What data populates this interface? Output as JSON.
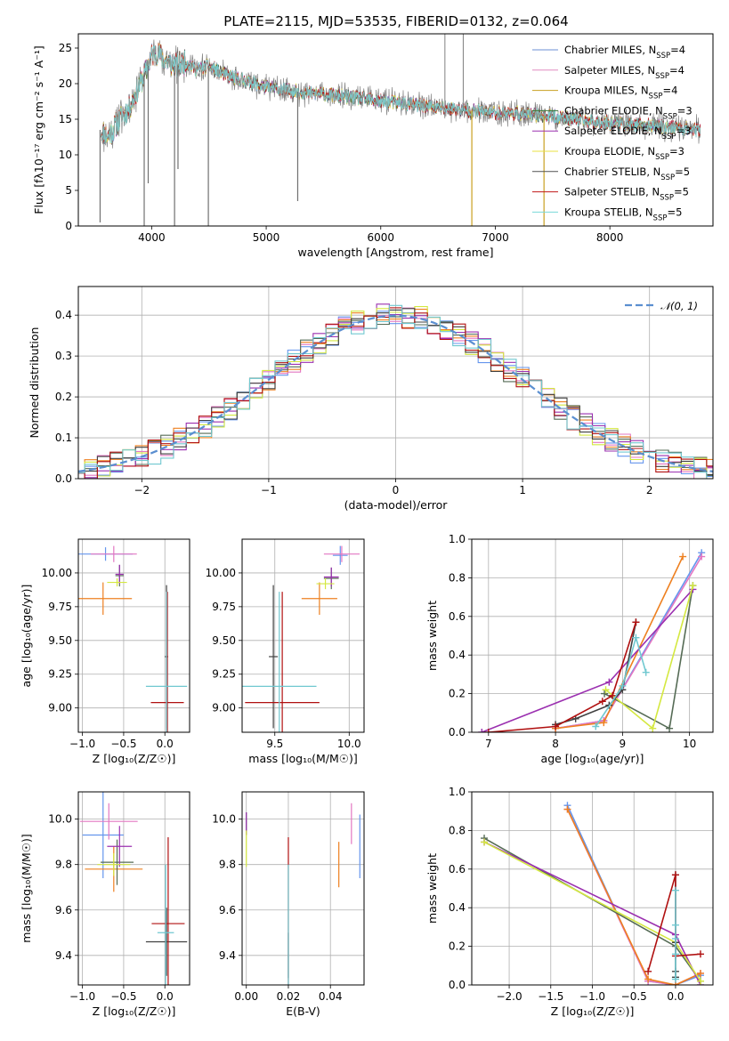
{
  "figure": {
    "title": "PLATE=2115, MJD=53535, FIBERID=0132, z=0.064"
  },
  "colors": {
    "series": [
      "#6b8fd6",
      "#e08cc0",
      "#c8a020",
      "#3a7a3a",
      "#9b30b0",
      "#e8e040",
      "#505050",
      "#c01818",
      "#78d8d8"
    ],
    "overlay": [
      "#6495ed",
      "#e377c2",
      "#ee8020",
      "#556b55",
      "#9b30b0",
      "#d4e840",
      "#404040",
      "#b01010",
      "#70c8d0"
    ],
    "gauss": "#5b8fd0"
  },
  "chart_data": [
    {
      "id": "spectrum",
      "type": "line",
      "title": "PLATE=2115, MJD=53535, FIBERID=0132, z=0.064",
      "xlabel": "wavelength [Angstrom, rest frame]",
      "ylabel": "Flux [fλ10⁻¹⁷ erg cm⁻² s⁻¹ A⁻¹]",
      "xlim": [
        3360,
        8900
      ],
      "ylim": [
        0,
        27
      ],
      "xticks": [
        4000,
        5000,
        6000,
        7000,
        8000
      ],
      "yticks": [
        0,
        5,
        10,
        15,
        20,
        25
      ],
      "grid": false,
      "legend_position": "top-right",
      "continuum": {
        "x": [
          3560,
          3620,
          3700,
          3800,
          3900,
          3960,
          4000,
          4050,
          4100,
          4200,
          4300,
          4400,
          4500,
          4600,
          4800,
          5000,
          5200,
          5500,
          5800,
          6000,
          6200,
          6400,
          6600,
          6800,
          7000,
          7200,
          7400,
          7600,
          7800,
          8000,
          8200,
          8400,
          8600,
          8800
        ],
        "y": [
          13.5,
          12.5,
          14.5,
          16.5,
          20,
          22,
          24,
          24.5,
          23.5,
          22.5,
          23,
          22,
          22.5,
          21.5,
          20.5,
          19.5,
          19,
          18.5,
          18,
          17.5,
          17.2,
          16.8,
          16.5,
          16.2,
          16,
          15.8,
          15.5,
          15.2,
          14.8,
          14.5,
          14.2,
          14,
          13.8,
          13.5
        ]
      },
      "series": [
        {
          "name": "Chabrier MILES, N_SSP=4"
        },
        {
          "name": "Salpeter MILES, N_SSP=4"
        },
        {
          "name": "Kroupa MILES, N_SSP=4"
        },
        {
          "name": "Chabrier ELODIE, N_SSP=3"
        },
        {
          "name": "Salpeter ELODIE, N_SSP=3"
        },
        {
          "name": "Kroupa ELODIE, N_SSP=3"
        },
        {
          "name": "Chabrier STELIB, N_SSP=5"
        },
        {
          "name": "Salpeter STELIB, N_SSP=5"
        },
        {
          "name": "Kroupa STELIB, N_SSP=5"
        }
      ],
      "legend_entries": [
        {
          "pre": "Chabrier MILES, N",
          "sub": "SSP",
          "post": "=4"
        },
        {
          "pre": "Salpeter MILES, N",
          "sub": "SSP",
          "post": "=4"
        },
        {
          "pre": "Kroupa MILES, N",
          "sub": "SSP",
          "post": "=4"
        },
        {
          "pre": "Chabrier ELODIE, N",
          "sub": "SSP",
          "post": "=3"
        },
        {
          "pre": "Salpeter ELODIE, N",
          "sub": "SSP",
          "post": "=3"
        },
        {
          "pre": "Kroupa ELODIE, N",
          "sub": "SSP",
          "post": "=3"
        },
        {
          "pre": "Chabrier STELIB, N",
          "sub": "SSP",
          "post": "=5"
        },
        {
          "pre": "Salpeter STELIB, N",
          "sub": "SSP",
          "post": "=5"
        },
        {
          "pre": "Kroupa STELIB, N",
          "sub": "SSP",
          "post": "=5"
        }
      ],
      "spikes_down": [
        {
          "x": 3550,
          "y": 0.5
        },
        {
          "x": 3935,
          "y": 0
        },
        {
          "x": 3970,
          "y": 6
        },
        {
          "x": 4200,
          "y": 0
        },
        {
          "x": 4230,
          "y": 8
        },
        {
          "x": 4495,
          "y": 0
        },
        {
          "x": 5275,
          "y": 3.5
        },
        {
          "x": 6795,
          "y": 0
        },
        {
          "x": 7425,
          "y": 0
        }
      ],
      "spikes_up": [
        {
          "x": 6560,
          "y": 27
        },
        {
          "x": 6720,
          "y": 27
        }
      ]
    },
    {
      "id": "residuals",
      "type": "line",
      "xlabel": "(data-model)/error",
      "ylabel": "Normed distribution",
      "xlim": [
        -2.5,
        2.5
      ],
      "ylim": [
        0,
        0.47
      ],
      "xticks": [
        -2,
        -1,
        0,
        1,
        2
      ],
      "yticks": [
        0.0,
        0.1,
        0.2,
        0.3,
        0.4
      ],
      "grid": true,
      "legend_position": "top-right",
      "legend_label": "𝒩(0, 1)",
      "bin_width": 0.1
    },
    {
      "id": "age-vs-Z",
      "type": "scatter",
      "xlabel": "Z [log₁₀(Z/Z☉)]",
      "ylabel": "age  [log₁₀(age/yr)]",
      "xlim": [
        -1.05,
        0.3
      ],
      "ylim": [
        8.82,
        10.25
      ],
      "xticks": [
        -1.0,
        -0.5,
        0.0
      ],
      "yticks": [
        9.0,
        9.25,
        9.5,
        9.75,
        10.0
      ],
      "grid": true,
      "points": [
        {
          "series": 0,
          "x": -0.72,
          "y": 10.14,
          "xerr": 0.33,
          "yerr": 0.05
        },
        {
          "series": 1,
          "x": -0.62,
          "y": 10.14,
          "xerr": 0.28,
          "yerr": 0.06
        },
        {
          "series": 2,
          "x": -0.75,
          "y": 9.81,
          "xerr": 0.35,
          "yerr": 0.12
        },
        {
          "series": 3,
          "x": -0.55,
          "y": 9.98,
          "xerr": 0.05,
          "yerr": 0.08
        },
        {
          "series": 4,
          "x": -0.55,
          "y": 9.99,
          "xerr": 0.05,
          "yerr": 0.07
        },
        {
          "series": 5,
          "x": -0.58,
          "y": 9.93,
          "xerr": 0.12,
          "yerr": 0.03
        },
        {
          "series": 6,
          "x": 0.02,
          "y": 9.38,
          "xerr": 0.02,
          "yerr": 0.53
        },
        {
          "series": 7,
          "x": 0.03,
          "y": 9.04,
          "xerr": 0.2,
          "yerr": 0.82
        },
        {
          "series": 8,
          "x": 0.02,
          "y": 9.16,
          "xerr": 0.25,
          "yerr": 0.7
        }
      ]
    },
    {
      "id": "age-vs-mass",
      "type": "scatter",
      "xlabel": "mass [log₁₀(M/M☉)]",
      "ylabel": "",
      "xlim": [
        9.28,
        10.1
      ],
      "ylim": [
        8.82,
        10.25
      ],
      "xticks": [
        9.5,
        10.0
      ],
      "yticks": [
        9.0,
        9.25,
        9.5,
        9.75,
        10.0
      ],
      "grid": true,
      "points": [
        {
          "series": 0,
          "x": 9.94,
          "y": 10.13,
          "xerr": 0.05,
          "yerr": 0.07
        },
        {
          "series": 1,
          "x": 9.95,
          "y": 10.14,
          "xerr": 0.12,
          "yerr": 0.06
        },
        {
          "series": 2,
          "x": 9.8,
          "y": 9.81,
          "xerr": 0.12,
          "yerr": 0.12
        },
        {
          "series": 3,
          "x": 9.88,
          "y": 9.96,
          "xerr": 0.05,
          "yerr": 0.08
        },
        {
          "series": 4,
          "x": 9.88,
          "y": 9.97,
          "xerr": 0.05,
          "yerr": 0.07
        },
        {
          "series": 5,
          "x": 9.84,
          "y": 9.92,
          "xerr": 0.06,
          "yerr": 0.04
        },
        {
          "series": 6,
          "x": 9.49,
          "y": 9.38,
          "xerr": 0.03,
          "yerr": 0.53
        },
        {
          "series": 7,
          "x": 9.55,
          "y": 9.04,
          "xerr": 0.25,
          "yerr": 0.82
        },
        {
          "series": 8,
          "x": 9.53,
          "y": 9.16,
          "xerr": 0.25,
          "yerr": 0.7
        }
      ]
    },
    {
      "id": "weight-vs-age",
      "type": "line",
      "xlabel": "age  [log₁₀(age/yr)]",
      "ylabel": "mass weight",
      "xlim": [
        6.75,
        10.35
      ],
      "ylim": [
        0,
        1.0
      ],
      "xticks": [
        7,
        8,
        9,
        10
      ],
      "yticks": [
        0.0,
        0.2,
        0.4,
        0.6,
        0.8,
        1.0
      ],
      "grid": true,
      "series": [
        {
          "series": 0,
          "x": [
            8.0,
            8.72,
            10.18
          ],
          "y": [
            0.02,
            0.06,
            0.93
          ]
        },
        {
          "series": 1,
          "x": [
            8.0,
            8.72,
            10.18
          ],
          "y": [
            0.02,
            0.06,
            0.91
          ]
        },
        {
          "series": 2,
          "x": [
            8.0,
            8.72,
            9.9
          ],
          "y": [
            0.02,
            0.05,
            0.91
          ]
        },
        {
          "series": 3,
          "x": [
            8.73,
            9.7,
            10.05
          ],
          "y": [
            0.2,
            0.02,
            0.76
          ]
        },
        {
          "series": 4,
          "x": [
            6.9,
            8.8,
            10.05
          ],
          "y": [
            0.0,
            0.26,
            0.74
          ]
        },
        {
          "series": 5,
          "x": [
            8.75,
            9.45,
            10.05
          ],
          "y": [
            0.22,
            0.02,
            0.76
          ]
        },
        {
          "series": 6,
          "x": [
            8.0,
            8.3,
            8.8,
            9.0,
            9.2
          ],
          "y": [
            0.04,
            0.07,
            0.14,
            0.22,
            0.57
          ]
        },
        {
          "series": 7,
          "x": [
            7.0,
            8.0,
            8.7,
            8.85,
            9.2
          ],
          "y": [
            0.0,
            0.03,
            0.16,
            0.19,
            0.57
          ]
        },
        {
          "series": 8,
          "x": [
            8.6,
            9.0,
            9.2,
            9.35
          ],
          "y": [
            0.03,
            0.24,
            0.49,
            0.31
          ]
        }
      ]
    },
    {
      "id": "mass-vs-Z",
      "type": "scatter",
      "xlabel": "Z [log₁₀(Z/Z☉)]",
      "ylabel": "mass [log₁₀(M/M☉)]",
      "xlim": [
        -1.05,
        0.3
      ],
      "ylim": [
        9.27,
        10.12
      ],
      "xticks": [
        -1.0,
        -0.5,
        0.0
      ],
      "yticks": [
        9.4,
        9.6,
        9.8,
        10.0
      ],
      "grid": true,
      "points": [
        {
          "series": 0,
          "x": -0.75,
          "y": 9.93,
          "xerr": 0.25,
          "yerr": 0.19
        },
        {
          "series": 1,
          "x": -0.68,
          "y": 9.99,
          "xerr": 0.35,
          "yerr": 0.08
        },
        {
          "series": 2,
          "x": -0.62,
          "y": 9.78,
          "xerr": 0.35,
          "yerr": 0.1
        },
        {
          "series": 3,
          "x": -0.58,
          "y": 9.81,
          "xerr": 0.2,
          "yerr": 0.1
        },
        {
          "series": 4,
          "x": -0.55,
          "y": 9.88,
          "xerr": 0.15,
          "yerr": 0.09
        },
        {
          "series": 5,
          "x": -0.62,
          "y": 9.8,
          "xerr": 0.2,
          "yerr": 0.05
        },
        {
          "series": 6,
          "x": 0.02,
          "y": 9.46,
          "xerr": 0.25,
          "yerr": 0.15
        },
        {
          "series": 7,
          "x": 0.04,
          "y": 9.54,
          "xerr": 0.2,
          "yerr": 0.38
        },
        {
          "series": 8,
          "x": 0.01,
          "y": 9.5,
          "xerr": 0.1,
          "yerr": 0.3
        }
      ]
    },
    {
      "id": "mass-vs-EBV",
      "type": "scatter",
      "xlabel": "E(B-V)",
      "ylabel": "",
      "xlim": [
        -0.002,
        0.056
      ],
      "ylim": [
        9.27,
        10.12
      ],
      "xticks": [
        0.0,
        0.02,
        0.04
      ],
      "yticks": [
        9.4,
        9.6,
        9.8,
        10.0
      ],
      "grid": true,
      "points": [
        {
          "series": 0,
          "x": 0.054,
          "y": 9.88,
          "xerr": 0,
          "yerr": 0.14
        },
        {
          "series": 1,
          "x": 0.05,
          "y": 9.98,
          "xerr": 0,
          "yerr": 0.09
        },
        {
          "series": 2,
          "x": 0.044,
          "y": 9.8,
          "xerr": 0,
          "yerr": 0.1
        },
        {
          "series": 3,
          "x": 0.0,
          "y": 9.98,
          "xerr": 0,
          "yerr": 0.05
        },
        {
          "series": 4,
          "x": 0.0,
          "y": 9.98,
          "xerr": 0,
          "yerr": 0.05
        },
        {
          "series": 5,
          "x": 0.0,
          "y": 9.87,
          "xerr": 0,
          "yerr": 0.08
        },
        {
          "series": 6,
          "x": 0.02,
          "y": 9.4,
          "xerr": 0,
          "yerr": 0.1
        },
        {
          "series": 7,
          "x": 0.02,
          "y": 9.55,
          "xerr": 0,
          "yerr": 0.37
        },
        {
          "series": 8,
          "x": 0.02,
          "y": 9.5,
          "xerr": 0,
          "yerr": 0.3
        }
      ]
    },
    {
      "id": "weight-vs-Z",
      "type": "line",
      "xlabel": "Z [log₁₀(Z/Z☉)]",
      "ylabel": "mass weight",
      "xlim": [
        -2.45,
        0.45
      ],
      "ylim": [
        0,
        1.0
      ],
      "xticks": [
        -2.0,
        -1.5,
        -1.0,
        -0.5,
        0.0
      ],
      "yticks": [
        0.0,
        0.2,
        0.4,
        0.6,
        0.8,
        1.0
      ],
      "grid": true,
      "series": [
        {
          "series": 0,
          "x": [
            -1.3,
            -0.33,
            0.0,
            0.3
          ],
          "y": [
            0.93,
            0.02,
            0.0,
            0.05
          ]
        },
        {
          "series": 1,
          "x": [
            -1.3,
            -0.33,
            0.0,
            0.3
          ],
          "y": [
            0.91,
            0.02,
            0.0,
            0.06
          ]
        },
        {
          "series": 2,
          "x": [
            -1.3,
            -0.33,
            0.0,
            0.3
          ],
          "y": [
            0.91,
            0.03,
            0.0,
            0.06
          ]
        },
        {
          "series": 3,
          "x": [
            -2.3,
            0.0,
            0.3
          ],
          "y": [
            0.76,
            0.2,
            0.02
          ]
        },
        {
          "series": 4,
          "x": [
            -2.3,
            0.0,
            0.3
          ],
          "y": [
            0.74,
            0.26,
            0.0
          ]
        },
        {
          "series": 5,
          "x": [
            -2.3,
            0.0,
            0.3
          ],
          "y": [
            0.74,
            0.22,
            0.02
          ]
        },
        {
          "series": 6,
          "x": [
            0.0,
            0.0,
            0.0,
            0.0
          ],
          "y": [
            0.57,
            0.22,
            0.07,
            0.04
          ]
        },
        {
          "series": 7,
          "x": [
            -0.33,
            0.0,
            0.0,
            0.3
          ],
          "y": [
            0.07,
            0.57,
            0.15,
            0.16
          ]
        },
        {
          "series": 8,
          "x": [
            0.0,
            0.0,
            0.0,
            0.0,
            0.0
          ],
          "y": [
            0.49,
            0.31,
            0.24,
            0.16,
            0.03
          ]
        }
      ]
    }
  ]
}
